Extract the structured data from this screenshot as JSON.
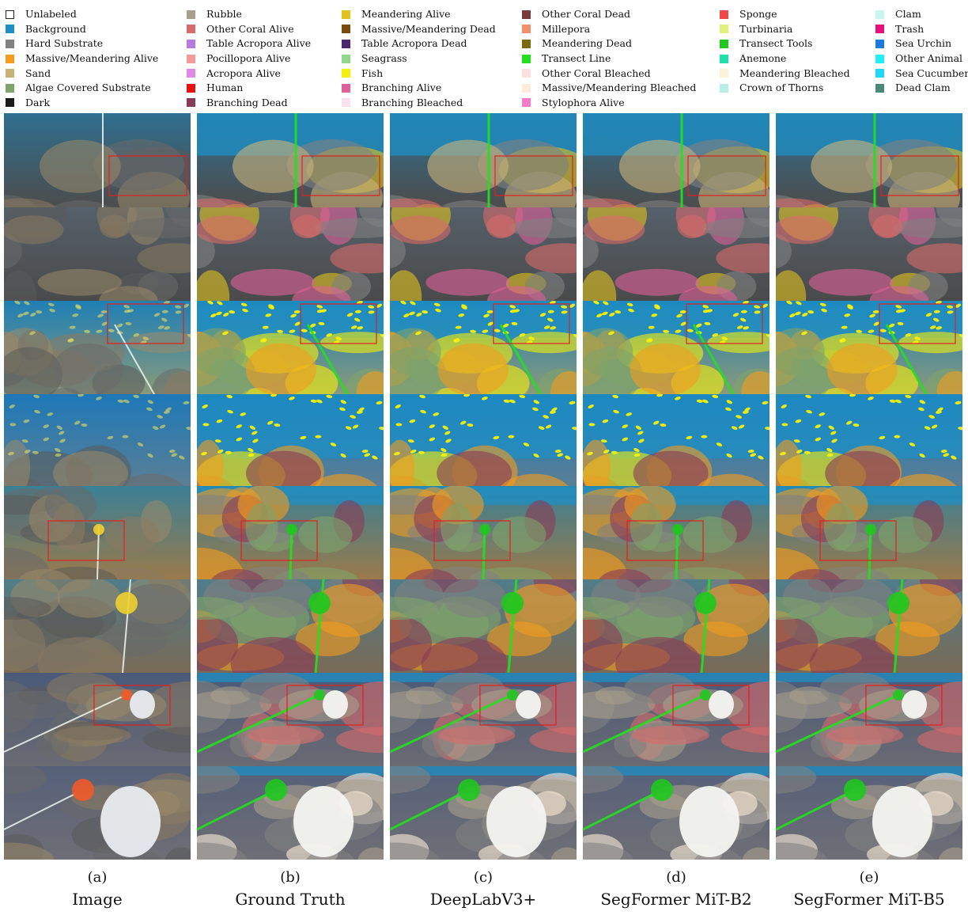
{
  "legend": {
    "items": [
      {
        "label": "Unlabeled",
        "color": "#ffffff",
        "outline": true
      },
      {
        "label": "Background",
        "color": "#1e8fc4"
      },
      {
        "label": "Hard Substrate",
        "color": "#808080"
      },
      {
        "label": "Massive/Meandering Alive",
        "color": "#f39c1e"
      },
      {
        "label": "Sand",
        "color": "#c9b27a"
      },
      {
        "label": "Algae Covered Substrate",
        "color": "#7fa36b"
      },
      {
        "label": "Dark",
        "color": "#1a1a1a"
      },
      {
        "label": "Rubble",
        "color": "#a89f8c"
      },
      {
        "label": "Other Coral Alive",
        "color": "#d96a6a"
      },
      {
        "label": "Table Acropora Alive",
        "color": "#b57be0"
      },
      {
        "label": "Pocillopora Alive",
        "color": "#f59a9a"
      },
      {
        "label": "Acropora Alive",
        "color": "#e08ae8"
      },
      {
        "label": "Human",
        "color": "#e81010"
      },
      {
        "label": "Branching Dead",
        "color": "#8a3a55"
      },
      {
        "label": "Meandering Alive",
        "color": "#e0c21e"
      },
      {
        "label": "Massive/Meandering Dead",
        "color": "#7a4a10"
      },
      {
        "label": "Table Acropora Dead",
        "color": "#4a2a6e"
      },
      {
        "label": "Seagrass",
        "color": "#8ed98a"
      },
      {
        "label": "Fish",
        "color": "#f5f00a"
      },
      {
        "label": "Branching Alive",
        "color": "#e0609a"
      },
      {
        "label": "Branching Bleached",
        "color": "#fae0ee"
      },
      {
        "label": "Other Coral Dead",
        "color": "#7a3a3a"
      },
      {
        "label": "Millepora",
        "color": "#f2906e"
      },
      {
        "label": "Meandering Dead",
        "color": "#7a6a10"
      },
      {
        "label": "Transect Line",
        "color": "#22e01e"
      },
      {
        "label": "Other Coral Bleached",
        "color": "#fae0e0"
      },
      {
        "label": "Massive/Meandering Bleached",
        "color": "#fcecd8"
      },
      {
        "label": "Stylophora Alive",
        "color": "#f57ac8"
      },
      {
        "label": "Sponge",
        "color": "#f04848"
      },
      {
        "label": "Turbinaria",
        "color": "#e0f07a"
      },
      {
        "label": "Transect Tools",
        "color": "#1ec81e"
      },
      {
        "label": "Anemone",
        "color": "#1ee0a8"
      },
      {
        "label": "Meandering Bleached",
        "color": "#fcf2d8"
      },
      {
        "label": "Crown of Thorns",
        "color": "#b8eee6"
      },
      {
        "label": "Clam",
        "color": "#c8f5ec"
      },
      {
        "label": "Trash",
        "color": "#e8107a"
      },
      {
        "label": "Sea Urchin",
        "color": "#1a7ae0"
      },
      {
        "label": "Other Animal",
        "color": "#1ef0f5"
      },
      {
        "label": "Sea Cucumber",
        "color": "#1ed8f5"
      },
      {
        "label": "Dead Clam",
        "color": "#4a8a78"
      }
    ]
  },
  "columns": [
    {
      "letter": "(a)",
      "name": "Image"
    },
    {
      "letter": "(b)",
      "name": "Ground Truth"
    },
    {
      "letter": "(c)",
      "name": "DeepLabV3+"
    },
    {
      "letter": "(d)",
      "name": "SegFormer MiT-B2"
    },
    {
      "letter": "(e)",
      "name": "SegFormer MiT-B5"
    }
  ]
}
